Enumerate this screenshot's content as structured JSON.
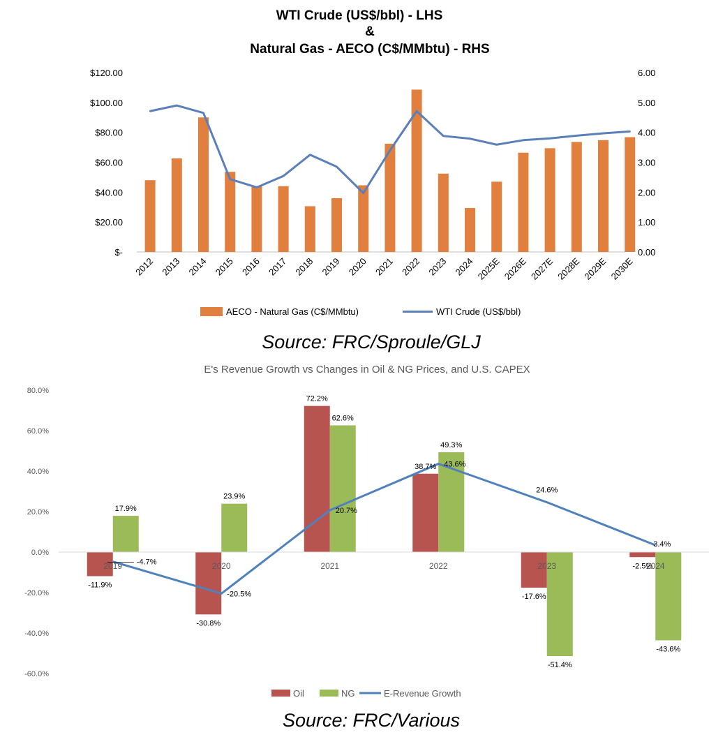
{
  "chart_data": [
    {
      "type": "bar",
      "title_lines": [
        "WTI Crude (US$/bbl) - LHS",
        "&",
        "Natural Gas - AECO (C$/MMbtu) - RHS"
      ],
      "categories": [
        "2012",
        "2013",
        "2014",
        "2015",
        "2016",
        "2017",
        "2018",
        "2019",
        "2020",
        "2021",
        "2022",
        "2023",
        "2024",
        "2025E",
        "2026E",
        "2027E",
        "2028E",
        "2029E",
        "2030E"
      ],
      "left_axis": {
        "ticks": [
          "$-",
          "$20.00",
          "$40.00",
          "$60.00",
          "$80.00",
          "$100.00",
          "$120.00"
        ],
        "ylim": [
          0,
          120
        ]
      },
      "right_axis": {
        "ticks": [
          "0.00",
          "1.00",
          "2.00",
          "3.00",
          "4.00",
          "5.00",
          "6.00"
        ],
        "ylim": [
          0,
          6
        ]
      },
      "series": [
        {
          "name": "AECO - Natural Gas (C$/MMbtu)",
          "type": "bar",
          "axis": "right",
          "values": [
            2.4,
            3.13,
            4.5,
            2.68,
            2.2,
            2.2,
            1.53,
            1.8,
            2.23,
            3.62,
            5.43,
            2.62,
            1.47,
            2.35,
            3.32,
            3.47,
            3.68,
            3.74,
            3.84
          ]
        },
        {
          "name": "WTI Crude (US$/bbl)",
          "type": "line",
          "axis": "left",
          "values": [
            94.2,
            98.0,
            93.0,
            48.7,
            43.2,
            50.8,
            65.0,
            57.0,
            39.4,
            68.0,
            94.2,
            77.6,
            75.8,
            71.8,
            74.8,
            76.0,
            77.8,
            79.4,
            80.6
          ]
        }
      ],
      "colors": {
        "bar": "#E07F3E",
        "line": "#5B7FB8"
      },
      "grid": false,
      "legend_position": "bottom",
      "source": "Source: FRC/Sproule/GLJ"
    },
    {
      "type": "bar",
      "title": "E's Revenue Growth vs Changes in Oil & NG Prices, and U.S. CAPEX",
      "categories": [
        "2019",
        "2020",
        "2021",
        "2022",
        "2023",
        "2024"
      ],
      "y_axis": {
        "ticks": [
          "-60.0%",
          "-40.0%",
          "-20.0%",
          "0.0%",
          "20.0%",
          "40.0%",
          "60.0%",
          "80.0%"
        ],
        "ylim": [
          -60,
          80
        ]
      },
      "series": [
        {
          "name": "Oil",
          "type": "bar",
          "values": [
            -11.9,
            -30.8,
            72.2,
            38.7,
            -17.6,
            -2.5
          ],
          "labels": [
            "-11.9%",
            "-30.8%",
            "72.2%",
            "38.7%",
            "-17.6%",
            "-2.5%"
          ]
        },
        {
          "name": "NG",
          "type": "bar",
          "values": [
            17.9,
            23.9,
            62.6,
            49.3,
            -51.4,
            -43.6
          ],
          "labels": [
            "17.9%",
            "23.9%",
            "62.6%",
            "49.3%",
            "-51.4%",
            "-43.6%"
          ]
        },
        {
          "name": "E-Revenue Growth",
          "type": "line",
          "values": [
            -4.7,
            -20.5,
            20.7,
            43.6,
            24.6,
            3.4
          ],
          "labels": [
            "-4.7%",
            "-20.5%",
            "20.7%",
            "43.6%",
            "24.6%",
            "3.4%"
          ]
        }
      ],
      "colors": {
        "oil": "#B85450",
        "ng": "#9BBB59",
        "line": "#4F81BD"
      },
      "grid": false,
      "legend_position": "bottom",
      "source": "Source: FRC/Various"
    }
  ]
}
